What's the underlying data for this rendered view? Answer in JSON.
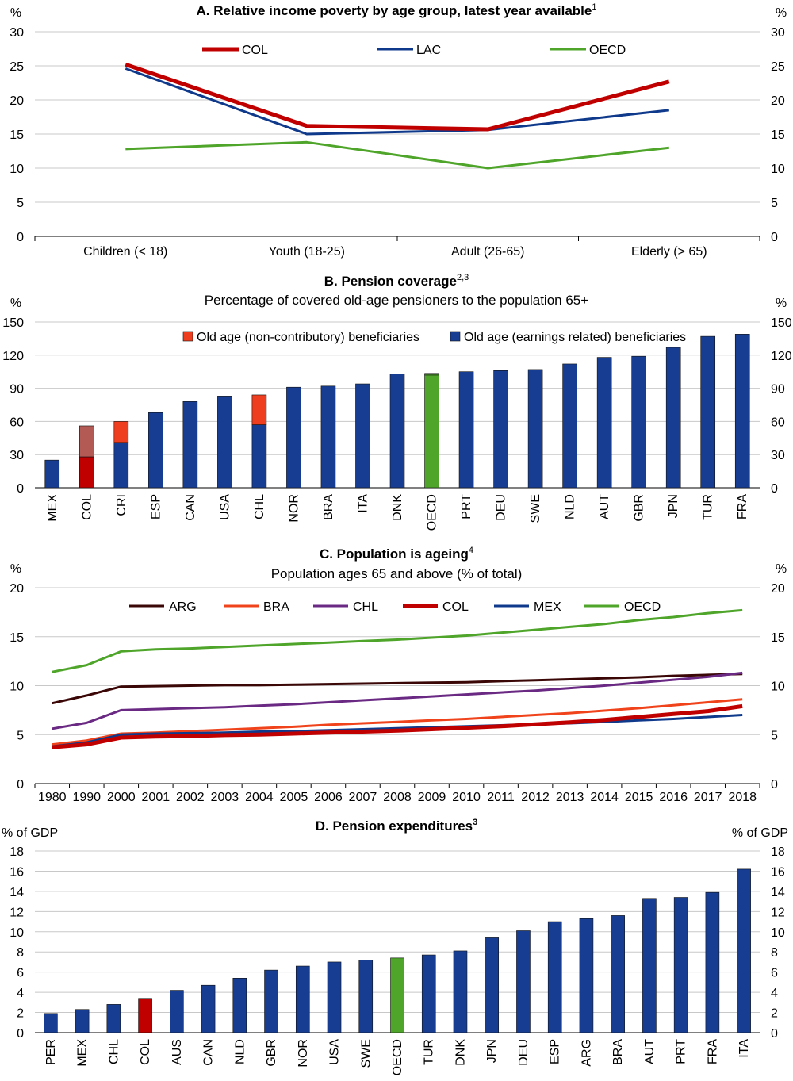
{
  "colors": {
    "COL": "#c00000",
    "LAC": "#0f3a8c",
    "OECD": "#4ea52a",
    "bar_blue": "#173d92",
    "bar_noncontrib": "#ee3e1f",
    "COL_noncontrib": "#b35a55",
    "ARG": "#3a0606",
    "BRA": "#f0431b",
    "CHL": "#6a2a84",
    "MEX": "#0f3a8c",
    "grid": "#c8c8c8"
  },
  "chart_data": [
    {
      "id": "A",
      "type": "line",
      "title": "A. Relative income poverty by age group, latest year available",
      "title_sup": "1",
      "unit_left": "%",
      "unit_right": "%",
      "categories": [
        "Children (< 18)",
        "Youth (18-25)",
        "Adult (26-65)",
        "Elderly (> 65)"
      ],
      "ylim": [
        0,
        30
      ],
      "yticks": [
        0,
        5,
        10,
        15,
        20,
        25,
        30
      ],
      "grid": true,
      "legend_position": "top",
      "series": [
        {
          "name": "COL",
          "color_key": "COL",
          "width": 5,
          "values": [
            25.2,
            16.2,
            15.7,
            22.7
          ]
        },
        {
          "name": "LAC",
          "color_key": "LAC",
          "width": 3,
          "values": [
            24.6,
            15.0,
            15.6,
            18.5
          ]
        },
        {
          "name": "OECD",
          "color_key": "OECD",
          "width": 3,
          "values": [
            12.8,
            13.8,
            10.0,
            13.0
          ]
        }
      ]
    },
    {
      "id": "B",
      "type": "bar",
      "stacked": true,
      "title": "B. Pension coverage",
      "title_sup": "2,3",
      "subtitle": "Percentage of covered old-age pensioners to the population 65+",
      "unit_left": "%",
      "unit_right": "%",
      "ylim": [
        0,
        150
      ],
      "yticks": [
        0,
        30,
        60,
        90,
        120,
        150
      ],
      "grid": true,
      "legend_position": "top",
      "legend": [
        {
          "name": "Old age (non-contributory) beneficiaries",
          "color_key": "bar_noncontrib"
        },
        {
          "name": "Old age (earnings related) beneficiaries",
          "color_key": "bar_blue"
        }
      ],
      "categories": [
        "MEX",
        "COL",
        "CRI",
        "ESP",
        "CAN",
        "USA",
        "CHL",
        "NOR",
        "BRA",
        "ITA",
        "DNK",
        "OECD",
        "PRT",
        "DEU",
        "SWE",
        "NLD",
        "AUT",
        "GBR",
        "JPN",
        "TUR",
        "FRA"
      ],
      "series": [
        {
          "name": "Old age (earnings related) beneficiaries",
          "values": [
            25,
            28,
            41,
            68,
            78,
            83,
            57,
            91,
            92,
            94,
            103,
            102,
            105,
            106,
            107,
            112,
            118,
            119,
            127,
            137,
            139
          ]
        },
        {
          "name": "Old age (non-contributory) beneficiaries",
          "values": [
            0,
            28,
            19,
            0,
            0,
            0,
            27,
            0,
            0,
            0,
            0,
            1.5,
            0,
            0,
            0,
            0,
            0,
            0,
            0,
            0,
            0
          ]
        }
      ]
    },
    {
      "id": "C",
      "type": "line",
      "title": "C. Population is ageing",
      "title_sup": "4",
      "subtitle": "Population ages 65 and above (% of total)",
      "unit_left": "%",
      "unit_right": "%",
      "categories": [
        "1980",
        "1990",
        "2000",
        "2001",
        "2002",
        "2003",
        "2004",
        "2005",
        "2006",
        "2007",
        "2008",
        "2009",
        "2010",
        "2011",
        "2012",
        "2013",
        "2014",
        "2015",
        "2016",
        "2017",
        "2018"
      ],
      "ylim": [
        0,
        20
      ],
      "yticks": [
        0,
        5,
        10,
        15,
        20
      ],
      "grid": true,
      "legend_position": "top",
      "series": [
        {
          "name": "ARG",
          "color_key": "ARG",
          "width": 3,
          "values": [
            8.2,
            9.0,
            9.9,
            9.95,
            10.0,
            10.05,
            10.05,
            10.1,
            10.15,
            10.2,
            10.25,
            10.3,
            10.35,
            10.45,
            10.55,
            10.65,
            10.75,
            10.85,
            11.0,
            11.1,
            11.2
          ]
        },
        {
          "name": "BRA",
          "color_key": "BRA",
          "width": 3,
          "values": [
            4.0,
            4.4,
            5.1,
            5.2,
            5.35,
            5.5,
            5.65,
            5.8,
            6.0,
            6.15,
            6.3,
            6.45,
            6.6,
            6.8,
            7.0,
            7.2,
            7.45,
            7.7,
            8.0,
            8.3,
            8.6
          ]
        },
        {
          "name": "CHL",
          "color_key": "CHL",
          "width": 3,
          "values": [
            5.6,
            6.2,
            7.5,
            7.6,
            7.7,
            7.8,
            7.95,
            8.1,
            8.3,
            8.5,
            8.7,
            8.9,
            9.1,
            9.3,
            9.5,
            9.75,
            10.0,
            10.3,
            10.6,
            10.9,
            11.3
          ]
        },
        {
          "name": "COL",
          "color_key": "COL",
          "width": 5,
          "values": [
            3.7,
            4.0,
            4.7,
            4.8,
            4.85,
            4.95,
            5.0,
            5.1,
            5.2,
            5.3,
            5.4,
            5.55,
            5.7,
            5.85,
            6.05,
            6.25,
            6.5,
            6.8,
            7.1,
            7.4,
            7.9
          ]
        },
        {
          "name": "MEX",
          "color_key": "MEX",
          "width": 3,
          "values": [
            3.8,
            4.2,
            5.0,
            5.1,
            5.15,
            5.2,
            5.3,
            5.35,
            5.45,
            5.55,
            5.65,
            5.75,
            5.85,
            5.95,
            6.05,
            6.15,
            6.3,
            6.45,
            6.6,
            6.8,
            7.0
          ]
        },
        {
          "name": "OECD",
          "color_key": "OECD",
          "width": 3,
          "values": [
            11.4,
            12.1,
            13.5,
            13.7,
            13.8,
            13.95,
            14.1,
            14.25,
            14.4,
            14.55,
            14.7,
            14.9,
            15.1,
            15.4,
            15.7,
            16.0,
            16.3,
            16.7,
            17.0,
            17.4,
            17.7
          ]
        }
      ]
    },
    {
      "id": "D",
      "type": "bar",
      "title": "D. Pension expenditures",
      "title_sup": "3",
      "unit_left": "% of GDP",
      "unit_right": "% of GDP",
      "ylim": [
        0,
        18
      ],
      "yticks": [
        0,
        2,
        4,
        6,
        8,
        10,
        12,
        14,
        16,
        18
      ],
      "grid": true,
      "categories": [
        "PER",
        "MEX",
        "CHL",
        "COL",
        "AUS",
        "CAN",
        "NLD",
        "GBR",
        "NOR",
        "USA",
        "SWE",
        "OECD",
        "TUR",
        "DNK",
        "JPN",
        "DEU",
        "ESP",
        "ARG",
        "BRA",
        "AUT",
        "PRT",
        "FRA",
        "ITA"
      ],
      "values": [
        1.9,
        2.3,
        2.8,
        3.4,
        4.2,
        4.7,
        5.4,
        6.2,
        6.6,
        7.0,
        7.2,
        7.4,
        7.7,
        8.1,
        9.4,
        10.1,
        11.0,
        11.3,
        11.6,
        13.3,
        13.4,
        13.9,
        16.2
      ],
      "highlight": {
        "COL": "COL",
        "OECD": "OECD"
      }
    }
  ]
}
